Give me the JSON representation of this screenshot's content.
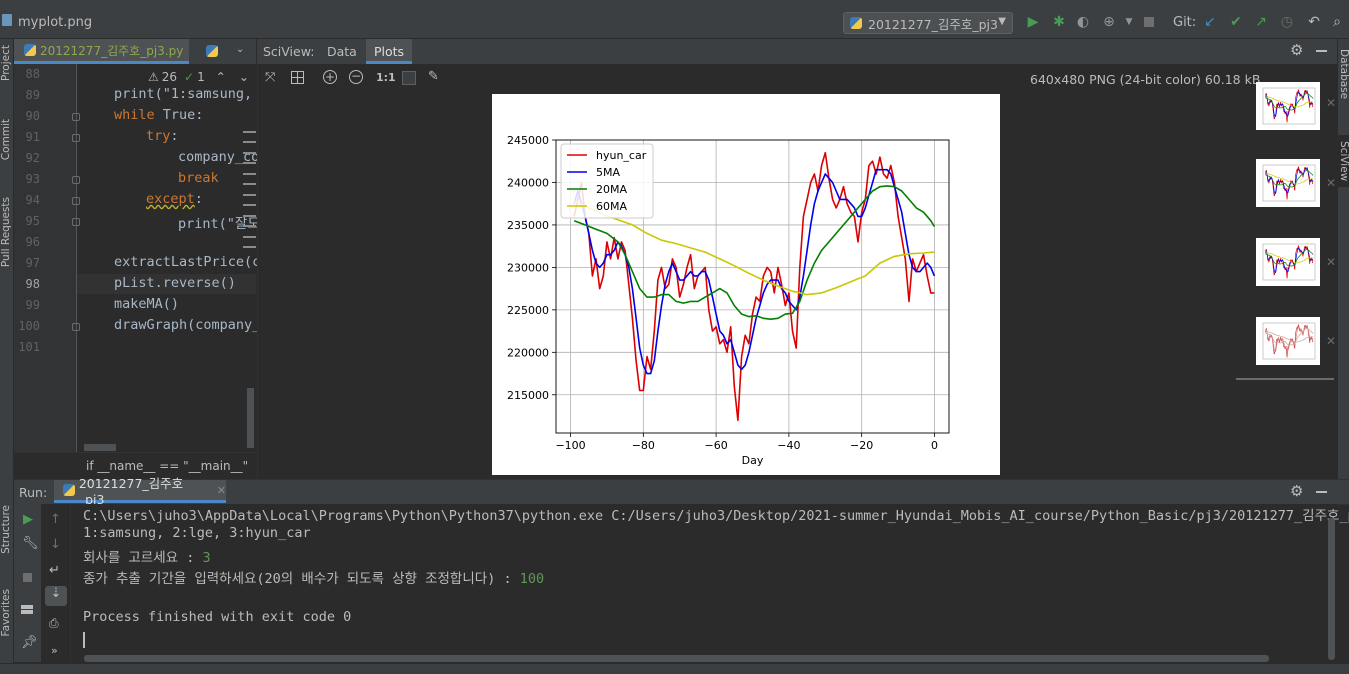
{
  "window": {
    "file_title": "myplot.png"
  },
  "toolbar": {
    "run_config": "20121277_김주호_pj3",
    "git_label": "Git:"
  },
  "left_tool_windows": [
    "Project",
    "Commit",
    "Pull Requests",
    "Structure",
    "Favorites"
  ],
  "right_tool_windows": [
    "Database",
    "SciView"
  ],
  "editor": {
    "tab_label": "20121277_김주호_pj3.py",
    "warnings": "26",
    "weak_warnings": "1",
    "lines": [
      {
        "n": "88",
        "text": ""
      },
      {
        "n": "89",
        "text": "print(\"1:samsung,"
      },
      {
        "n": "90",
        "kw": "while",
        "text": " True:"
      },
      {
        "n": "91",
        "kw": "try",
        "text": ":"
      },
      {
        "n": "92",
        "text": "company_co"
      },
      {
        "n": "93",
        "kw": "break",
        "text": ""
      },
      {
        "n": "94",
        "kw": "except",
        "text": ":"
      },
      {
        "n": "95",
        "text": "print(\"잘도"
      },
      {
        "n": "96",
        "text": ""
      },
      {
        "n": "97",
        "text": "extractLastPrice(c"
      },
      {
        "n": "98",
        "text": "pList.reverse()"
      },
      {
        "n": "99",
        "text": "makeMA()"
      },
      {
        "n": "100",
        "text": "drawGraph(company_"
      },
      {
        "n": "101",
        "text": ""
      }
    ],
    "breadcrumb": "if __name__ == \"__main__\""
  },
  "sciview": {
    "title": "SciView:",
    "tabs": [
      "Data",
      "Plots"
    ],
    "active_tab": "Plots",
    "zoom_label": "1:1",
    "image_info": "640x480 PNG (24-bit color) 60.18 kB"
  },
  "run": {
    "label": "Run:",
    "tab": "20121277_김주호_pj3",
    "output": [
      "C:\\Users\\juho3\\AppData\\Local\\Programs\\Python\\Python37\\python.exe C:/Users/juho3/Desktop/2021-summer_Hyundai_Mobis_AI_course/Python_Basic/pj3/20121277_김주호_p",
      "1:samsung, 2:lge, 3:hyun_car"
    ],
    "prompt1": "회사를 고르세요 : ",
    "input1": "3",
    "prompt2": "종가 추출 기간을 입력하세요(20의 배수가 되도록 상향 조정합니다) : ",
    "input2": "100",
    "finished": "Process finished with exit code 0"
  },
  "colors": {
    "accent": "#4a88c7",
    "run_green": "#499c54"
  },
  "chart_data": {
    "type": "line",
    "xlabel": "Day",
    "ylabel": "",
    "xlim": [
      -104,
      4
    ],
    "ylim": [
      210500,
      245000
    ],
    "xticks": [
      -100,
      -80,
      -60,
      -40,
      -20,
      0
    ],
    "yticks": [
      215000,
      220000,
      225000,
      230000,
      235000,
      240000,
      245000
    ],
    "grid": true,
    "legend": "top-left",
    "series": [
      {
        "name": "hyun_car",
        "color": "#dd0000",
        "points": [
          [
            -99,
            236000
          ],
          [
            -97,
            240000
          ],
          [
            -96,
            236000
          ],
          [
            -95,
            234000
          ],
          [
            -94,
            229000
          ],
          [
            -93,
            231000
          ],
          [
            -92,
            227500
          ],
          [
            -91,
            229000
          ],
          [
            -90,
            233000
          ],
          [
            -89,
            231000
          ],
          [
            -88,
            233500
          ],
          [
            -87,
            231000
          ],
          [
            -86,
            233000
          ],
          [
            -85,
            232000
          ],
          [
            -84,
            228000
          ],
          [
            -83,
            224000
          ],
          [
            -82,
            219000
          ],
          [
            -81,
            215500
          ],
          [
            -80,
            215500
          ],
          [
            -79,
            219500
          ],
          [
            -78,
            218000
          ],
          [
            -77,
            222500
          ],
          [
            -76,
            228500
          ],
          [
            -75,
            230000
          ],
          [
            -74,
            227500
          ],
          [
            -73,
            228000
          ],
          [
            -72,
            231000
          ],
          [
            -71,
            230000
          ],
          [
            -70,
            226500
          ],
          [
            -69,
            228000
          ],
          [
            -68,
            230000
          ],
          [
            -67,
            231500
          ],
          [
            -66,
            227500
          ],
          [
            -65,
            229000
          ],
          [
            -64,
            229500
          ],
          [
            -63,
            230000
          ],
          [
            -62,
            225000
          ],
          [
            -61,
            222500
          ],
          [
            -60,
            223000
          ],
          [
            -59,
            221000
          ],
          [
            -58,
            221500
          ],
          [
            -57,
            220000
          ],
          [
            -56,
            223000
          ],
          [
            -55,
            216000
          ],
          [
            -54,
            212000
          ],
          [
            -53,
            219500
          ],
          [
            -52,
            222000
          ],
          [
            -51,
            221000
          ],
          [
            -50,
            224500
          ],
          [
            -49,
            226500
          ],
          [
            -48,
            226000
          ],
          [
            -47,
            229000
          ],
          [
            -46,
            230000
          ],
          [
            -45,
            229500
          ],
          [
            -44,
            227000
          ],
          [
            -43,
            230000
          ],
          [
            -42,
            228000
          ],
          [
            -41,
            225500
          ],
          [
            -40,
            227000
          ],
          [
            -39,
            222500
          ],
          [
            -38,
            220500
          ],
          [
            -37,
            230000
          ],
          [
            -36,
            236000
          ],
          [
            -35,
            238000
          ],
          [
            -34,
            240000
          ],
          [
            -33,
            241000
          ],
          [
            -32,
            239000
          ],
          [
            -31,
            242000
          ],
          [
            -30,
            243500
          ],
          [
            -29,
            240500
          ],
          [
            -28,
            238000
          ],
          [
            -27,
            237000
          ],
          [
            -26,
            238000
          ],
          [
            -25,
            239500
          ],
          [
            -24,
            237500
          ],
          [
            -23,
            236500
          ],
          [
            -22,
            236000
          ],
          [
            -21,
            233000
          ],
          [
            -20,
            236500
          ],
          [
            -19,
            238000
          ],
          [
            -18,
            242000
          ],
          [
            -17,
            242500
          ],
          [
            -16,
            241000
          ],
          [
            -15,
            243000
          ],
          [
            -14,
            241000
          ],
          [
            -13,
            240500
          ],
          [
            -12,
            242000
          ],
          [
            -11,
            240000
          ],
          [
            -10,
            236000
          ],
          [
            -9,
            233500
          ],
          [
            -8,
            231000
          ],
          [
            -7,
            226000
          ],
          [
            -6,
            231000
          ],
          [
            -5,
            229500
          ],
          [
            -4,
            230500
          ],
          [
            -3,
            231500
          ],
          [
            -2,
            229000
          ],
          [
            -1,
            227000
          ],
          [
            0,
            227000
          ]
        ]
      },
      {
        "name": "5MA",
        "color": "#0000ee",
        "points": [
          [
            -99,
            237500
          ],
          [
            -98,
            239000
          ],
          [
            -97,
            237500
          ],
          [
            -96,
            236000
          ],
          [
            -95,
            234000
          ],
          [
            -94,
            232000
          ],
          [
            -93,
            230500
          ],
          [
            -92,
            230000
          ],
          [
            -91,
            230500
          ],
          [
            -90,
            231500
          ],
          [
            -89,
            231500
          ],
          [
            -88,
            232000
          ],
          [
            -87,
            233000
          ],
          [
            -86,
            232500
          ],
          [
            -85,
            231500
          ],
          [
            -84,
            230000
          ],
          [
            -83,
            227500
          ],
          [
            -82,
            224000
          ],
          [
            -81,
            220500
          ],
          [
            -80,
            218500
          ],
          [
            -79,
            217500
          ],
          [
            -78,
            217500
          ],
          [
            -77,
            219000
          ],
          [
            -76,
            222500
          ],
          [
            -75,
            225500
          ],
          [
            -74,
            228000
          ],
          [
            -73,
            229500
          ],
          [
            -72,
            230500
          ],
          [
            -71,
            229500
          ],
          [
            -70,
            228500
          ],
          [
            -69,
            228500
          ],
          [
            -68,
            229000
          ],
          [
            -67,
            229500
          ],
          [
            -66,
            229000
          ],
          [
            -65,
            229000
          ],
          [
            -64,
            229500
          ],
          [
            -63,
            229500
          ],
          [
            -62,
            228500
          ],
          [
            -61,
            226500
          ],
          [
            -60,
            224500
          ],
          [
            -59,
            222500
          ],
          [
            -58,
            222000
          ],
          [
            -57,
            221000
          ],
          [
            -56,
            221500
          ],
          [
            -55,
            220000
          ],
          [
            -54,
            218500
          ],
          [
            -53,
            218000
          ],
          [
            -52,
            218500
          ],
          [
            -51,
            220000
          ],
          [
            -50,
            222000
          ],
          [
            -49,
            224000
          ],
          [
            -48,
            225500
          ],
          [
            -47,
            227000
          ],
          [
            -46,
            228000
          ],
          [
            -45,
            228500
          ],
          [
            -44,
            228500
          ],
          [
            -43,
            228500
          ],
          [
            -42,
            227500
          ],
          [
            -41,
            227000
          ],
          [
            -40,
            226000
          ],
          [
            -39,
            225500
          ],
          [
            -38,
            225000
          ],
          [
            -37,
            226500
          ],
          [
            -36,
            229000
          ],
          [
            -35,
            232000
          ],
          [
            -34,
            235000
          ],
          [
            -33,
            237500
          ],
          [
            -32,
            239000
          ],
          [
            -31,
            240000
          ],
          [
            -30,
            241000
          ],
          [
            -29,
            240500
          ],
          [
            -28,
            240000
          ],
          [
            -27,
            239000
          ],
          [
            -26,
            238000
          ],
          [
            -25,
            238000
          ],
          [
            -24,
            238000
          ],
          [
            -23,
            237500
          ],
          [
            -22,
            237000
          ],
          [
            -21,
            236000
          ],
          [
            -20,
            236000
          ],
          [
            -19,
            237000
          ],
          [
            -18,
            238500
          ],
          [
            -17,
            240000
          ],
          [
            -16,
            241500
          ],
          [
            -15,
            241500
          ],
          [
            -14,
            241500
          ],
          [
            -13,
            241500
          ],
          [
            -12,
            241000
          ],
          [
            -11,
            239500
          ],
          [
            -10,
            238000
          ],
          [
            -9,
            236500
          ],
          [
            -8,
            234000
          ],
          [
            -7,
            231500
          ],
          [
            -6,
            230000
          ],
          [
            -5,
            229500
          ],
          [
            -4,
            229500
          ],
          [
            -3,
            230000
          ],
          [
            -2,
            230500
          ],
          [
            -1,
            230000
          ],
          [
            0,
            229000
          ]
        ]
      },
      {
        "name": "20MA",
        "color": "#008000",
        "points": [
          [
            -99,
            235500
          ],
          [
            -96,
            235000
          ],
          [
            -93,
            234500
          ],
          [
            -90,
            234000
          ],
          [
            -87,
            233000
          ],
          [
            -85,
            231500
          ],
          [
            -83,
            229500
          ],
          [
            -81,
            227500
          ],
          [
            -79,
            226500
          ],
          [
            -77,
            226500
          ],
          [
            -75,
            226800
          ],
          [
            -73,
            226800
          ],
          [
            -71,
            226000
          ],
          [
            -69,
            225800
          ],
          [
            -67,
            226000
          ],
          [
            -65,
            226000
          ],
          [
            -63,
            226500
          ],
          [
            -61,
            227000
          ],
          [
            -59,
            227500
          ],
          [
            -57,
            227000
          ],
          [
            -55,
            225500
          ],
          [
            -53,
            224500
          ],
          [
            -51,
            224200
          ],
          [
            -49,
            224300
          ],
          [
            -47,
            224000
          ],
          [
            -45,
            223900
          ],
          [
            -43,
            224000
          ],
          [
            -41,
            224500
          ],
          [
            -39,
            224600
          ],
          [
            -37,
            226000
          ],
          [
            -35,
            228500
          ],
          [
            -33,
            230500
          ],
          [
            -31,
            232000
          ],
          [
            -29,
            233000
          ],
          [
            -27,
            234000
          ],
          [
            -25,
            235000
          ],
          [
            -23,
            236000
          ],
          [
            -21,
            237000
          ],
          [
            -19,
            238000
          ],
          [
            -17,
            239000
          ],
          [
            -15,
            239500
          ],
          [
            -13,
            239600
          ],
          [
            -11,
            239500
          ],
          [
            -9,
            239000
          ],
          [
            -7,
            238000
          ],
          [
            -5,
            237000
          ],
          [
            -3,
            236500
          ],
          [
            -1,
            235500
          ],
          [
            0,
            234800
          ]
        ]
      },
      {
        "name": "60MA",
        "color": "#c8c800",
        "points": [
          [
            -99,
            237800
          ],
          [
            -95,
            237000
          ],
          [
            -91,
            236200
          ],
          [
            -87,
            235600
          ],
          [
            -83,
            235000
          ],
          [
            -79,
            234000
          ],
          [
            -75,
            233200
          ],
          [
            -71,
            232800
          ],
          [
            -67,
            232300
          ],
          [
            -63,
            231800
          ],
          [
            -59,
            231000
          ],
          [
            -55,
            230200
          ],
          [
            -51,
            229300
          ],
          [
            -47,
            228500
          ],
          [
            -43,
            227800
          ],
          [
            -39,
            227200
          ],
          [
            -35,
            226800
          ],
          [
            -31,
            227000
          ],
          [
            -27,
            227600
          ],
          [
            -23,
            228300
          ],
          [
            -19,
            229000
          ],
          [
            -15,
            230500
          ],
          [
            -11,
            231300
          ],
          [
            -7,
            231600
          ],
          [
            -3,
            231700
          ],
          [
            0,
            231800
          ]
        ]
      }
    ]
  }
}
